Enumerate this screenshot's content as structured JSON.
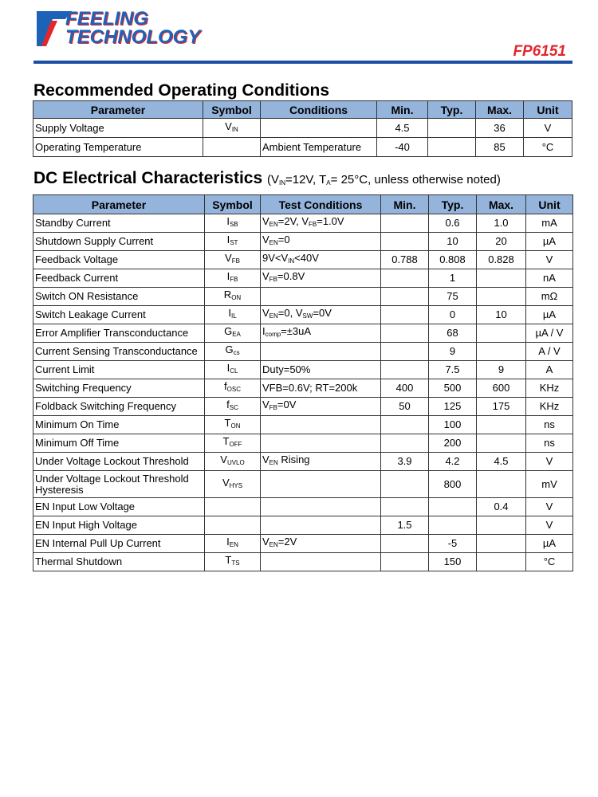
{
  "header": {
    "logo": [
      "FEELING",
      "TECHNOLOGY"
    ],
    "part_number": "FP6151"
  },
  "section1": {
    "title": "Recommended Operating Conditions",
    "table": {
      "columns": [
        "Parameter",
        "Symbol",
        "Conditions",
        "Min.",
        "Typ.",
        "Max.",
        "Unit"
      ],
      "rows": [
        [
          "Supply Voltage",
          [
            "V",
            {
              "sub": "IN"
            }
          ],
          null,
          "4.5",
          null,
          "36",
          "V"
        ],
        [
          "Operating Temperature",
          null,
          "Ambient Temperature",
          "-40",
          null,
          "85",
          "°C"
        ]
      ]
    }
  },
  "section2": {
    "title": "DC Electrical Characteristics",
    "subtitle": [
      "(V",
      {
        "sub": "IN"
      },
      "=12V, T",
      {
        "sub": "A"
      },
      "= 25°C, unless otherwise noted)"
    ],
    "table": {
      "columns": [
        "Parameter",
        "Symbol",
        "Test Conditions",
        "Min.",
        "Typ.",
        "Max.",
        "Unit"
      ],
      "rows": [
        [
          "Standby Current",
          [
            "I",
            {
              "sub": "SB"
            }
          ],
          [
            "V",
            {
              "sub": "EN"
            },
            "=2V, V",
            {
              "sub": "FB"
            },
            "=1.0V"
          ],
          null,
          "0.6",
          "1.0",
          "mA"
        ],
        [
          "Shutdown Supply Current",
          [
            "I",
            {
              "sub": "ST"
            }
          ],
          [
            "V",
            {
              "sub": "EN"
            },
            "=0"
          ],
          null,
          "10",
          "20",
          "µA"
        ],
        [
          "Feedback Voltage",
          [
            "V",
            {
              "sub": "FB"
            }
          ],
          [
            "9V<V",
            {
              "sub": "IN"
            },
            "<40V"
          ],
          "0.788",
          "0.808",
          "0.828",
          "V"
        ],
        [
          "Feedback Current",
          [
            "I",
            {
              "sub": "FB"
            }
          ],
          [
            "V",
            {
              "sub": "FB"
            },
            "=0.8V"
          ],
          null,
          "1",
          null,
          "nA"
        ],
        [
          "Switch ON Resistance",
          [
            "R",
            {
              "sub": "ON"
            }
          ],
          null,
          null,
          "75",
          null,
          "mΩ"
        ],
        [
          "Switch Leakage Current",
          [
            "I",
            {
              "sub": "IL"
            }
          ],
          [
            "V",
            {
              "sub": "EN"
            },
            "=0, V",
            {
              "sub": "SW"
            },
            "=0V"
          ],
          null,
          "0",
          "10",
          "µA"
        ],
        [
          "Error Amplifier Transconductance",
          [
            "G",
            {
              "sub": "EA"
            }
          ],
          [
            "I",
            {
              "sub": "comp"
            },
            "=±3uA"
          ],
          null,
          "68",
          null,
          "µA / V"
        ],
        [
          "Current Sensing Transconductance",
          [
            "G",
            {
              "sub": "cs"
            }
          ],
          null,
          null,
          "9",
          null,
          "A / V"
        ],
        [
          "Current Limit",
          [
            "I",
            {
              "sub": "CL"
            }
          ],
          "Duty=50%",
          null,
          "7.5",
          "9",
          "A"
        ],
        [
          "Switching Frequency",
          [
            "f",
            {
              "sub": "OSC"
            }
          ],
          "VFB=0.6V; RT=200k",
          "400",
          "500",
          "600",
          "KHz"
        ],
        [
          "Foldback Switching Frequency",
          [
            "f",
            {
              "sub": "SC"
            }
          ],
          [
            "V",
            {
              "sub": "FB"
            },
            "=0V"
          ],
          "50",
          "125",
          "175",
          "KHz"
        ],
        [
          "Minimum On Time",
          [
            "T",
            {
              "sub": "ON"
            }
          ],
          null,
          null,
          "100",
          null,
          "ns"
        ],
        [
          "Minimum Off Time",
          [
            "T",
            {
              "sub": "OFF"
            }
          ],
          null,
          null,
          "200",
          null,
          "ns"
        ],
        [
          "Under Voltage Lockout Threshold",
          [
            "V",
            {
              "sub": "UVLO"
            }
          ],
          [
            "V",
            {
              "sub": "EN"
            },
            " Rising"
          ],
          "3.9",
          "4.2",
          "4.5",
          "V"
        ],
        [
          "Under Voltage Lockout Threshold Hysteresis",
          [
            "V",
            {
              "sub": "HYS"
            }
          ],
          null,
          null,
          "800",
          null,
          "mV"
        ],
        [
          "EN Input Low Voltage",
          null,
          null,
          null,
          null,
          "0.4",
          "V"
        ],
        [
          "EN Input High Voltage",
          null,
          null,
          "1.5",
          null,
          null,
          "V"
        ],
        [
          "EN Internal Pull Up Current",
          [
            "I",
            {
              "sub": "EN"
            }
          ],
          [
            "V",
            {
              "sub": "EN"
            },
            "=2V"
          ],
          null,
          "-5",
          null,
          "µA"
        ],
        [
          "Thermal Shutdown",
          [
            "T",
            {
              "sub": "TS"
            }
          ],
          null,
          null,
          "150",
          null,
          "°C"
        ]
      ]
    }
  }
}
